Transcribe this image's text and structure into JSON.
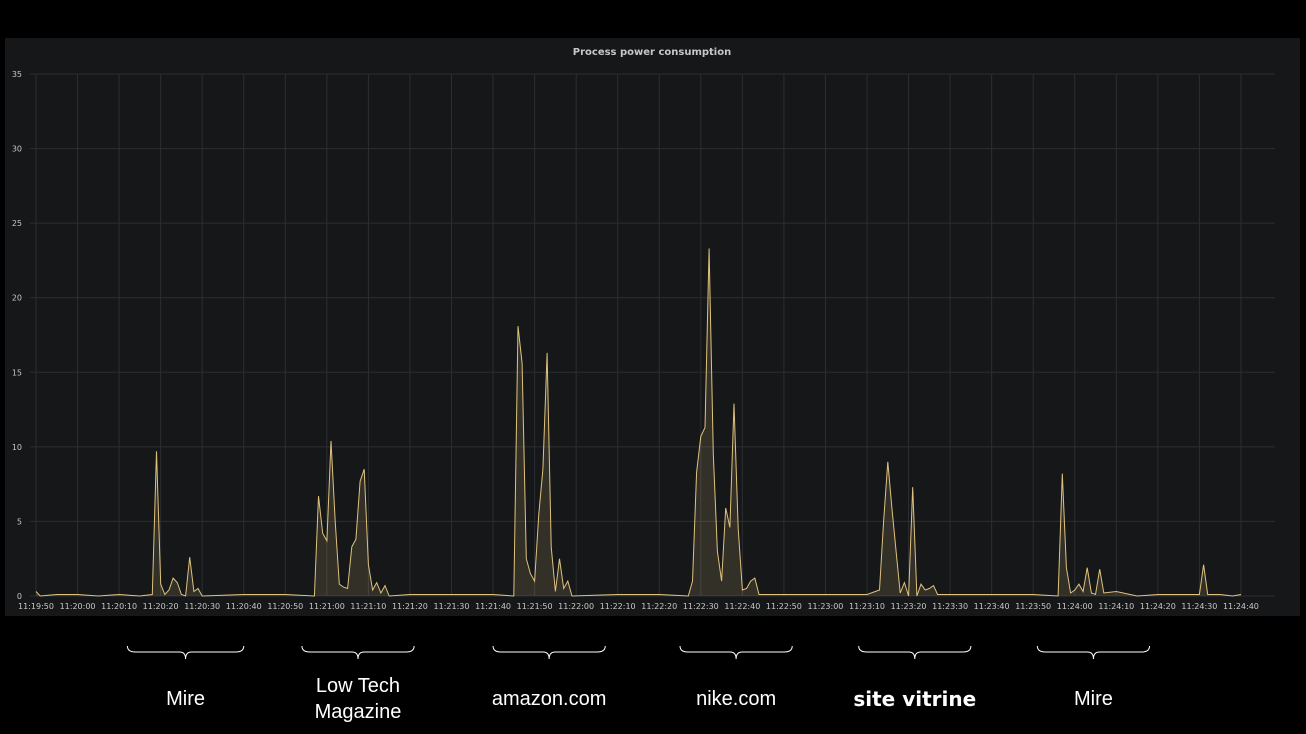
{
  "chart_data": {
    "type": "area",
    "title": "Process power consumption",
    "xlabel": "",
    "ylabel": "",
    "ylim": [
      0,
      35
    ],
    "y_ticks": [
      0,
      5,
      10,
      15,
      20,
      25,
      30,
      35
    ],
    "x_range_seconds_labels": [
      "11:19:50",
      "11:24:40"
    ],
    "x_tick_labels": [
      "11:19:50",
      "11:20:00",
      "11:20:10",
      "11:20:20",
      "11:20:30",
      "11:20:40",
      "11:20:50",
      "11:21:00",
      "11:21:10",
      "11:21:20",
      "11:21:30",
      "11:21:40",
      "11:21:50",
      "11:22:00",
      "11:22:10",
      "11:22:20",
      "11:22:30",
      "11:22:40",
      "11:22:50",
      "11:23:00",
      "11:23:10",
      "11:23:20",
      "11:23:30",
      "11:23:40",
      "11:23:50",
      "11:24:00",
      "11:24:10",
      "11:24:20",
      "11:24:30",
      "11:24:40"
    ],
    "grid": true,
    "series": [
      {
        "color": "#e0c27e",
        "points": [
          [
            "11:19:50",
            0.3
          ],
          [
            "11:19:51",
            0
          ],
          [
            "11:19:55",
            0.1
          ],
          [
            "11:20:00",
            0.1
          ],
          [
            "11:20:05",
            0
          ],
          [
            "11:20:10",
            0.1
          ],
          [
            "11:20:15",
            0
          ],
          [
            "11:20:18",
            0.1
          ],
          [
            "11:20:19",
            9.7
          ],
          [
            "11:20:20",
            0.8
          ],
          [
            "11:20:21",
            0.1
          ],
          [
            "11:20:22",
            0.4
          ],
          [
            "11:20:23",
            1.2
          ],
          [
            "11:20:24",
            0.9
          ],
          [
            "11:20:25",
            0.1
          ],
          [
            "11:20:26",
            0
          ],
          [
            "11:20:27",
            2.6
          ],
          [
            "11:20:28",
            0.3
          ],
          [
            "11:20:29",
            0.5
          ],
          [
            "11:20:30",
            0
          ],
          [
            "11:20:40",
            0.1
          ],
          [
            "11:20:50",
            0.1
          ],
          [
            "11:20:57",
            0
          ],
          [
            "11:20:58",
            6.7
          ],
          [
            "11:20:59",
            4.2
          ],
          [
            "11:21:00",
            3.7
          ],
          [
            "11:21:01",
            10.4
          ],
          [
            "11:21:02",
            5.0
          ],
          [
            "11:21:03",
            0.8
          ],
          [
            "11:21:04",
            0.6
          ],
          [
            "11:21:05",
            0.5
          ],
          [
            "11:21:06",
            3.3
          ],
          [
            "11:21:07",
            3.8
          ],
          [
            "11:21:08",
            7.7
          ],
          [
            "11:21:09",
            8.5
          ],
          [
            "11:21:10",
            2.1
          ],
          [
            "11:21:11",
            0.4
          ],
          [
            "11:21:12",
            0.9
          ],
          [
            "11:21:13",
            0.2
          ],
          [
            "11:21:14",
            0.7
          ],
          [
            "11:21:15",
            0
          ],
          [
            "11:21:20",
            0.1
          ],
          [
            "11:21:30",
            0.1
          ],
          [
            "11:21:40",
            0.1
          ],
          [
            "11:21:45",
            0
          ],
          [
            "11:21:46",
            18.1
          ],
          [
            "11:21:47",
            15.6
          ],
          [
            "11:21:48",
            2.5
          ],
          [
            "11:21:49",
            1.5
          ],
          [
            "11:21:50",
            1.0
          ],
          [
            "11:21:51",
            5.5
          ],
          [
            "11:21:52",
            8.5
          ],
          [
            "11:21:53",
            16.3
          ],
          [
            "11:21:54",
            3.3
          ],
          [
            "11:21:55",
            0.3
          ],
          [
            "11:21:56",
            2.5
          ],
          [
            "11:21:57",
            0.5
          ],
          [
            "11:21:58",
            1.0
          ],
          [
            "11:21:59",
            0
          ],
          [
            "11:22:10",
            0.1
          ],
          [
            "11:22:20",
            0.1
          ],
          [
            "11:22:27",
            0
          ],
          [
            "11:22:28",
            1.0
          ],
          [
            "11:22:29",
            8.3
          ],
          [
            "11:22:30",
            10.7
          ],
          [
            "11:22:31",
            11.3
          ],
          [
            "11:22:32",
            23.3
          ],
          [
            "11:22:33",
            9.5
          ],
          [
            "11:22:34",
            3.0
          ],
          [
            "11:22:35",
            1.0
          ],
          [
            "11:22:36",
            5.9
          ],
          [
            "11:22:37",
            4.6
          ],
          [
            "11:22:38",
            12.9
          ],
          [
            "11:22:39",
            4.5
          ],
          [
            "11:22:40",
            0.4
          ],
          [
            "11:22:41",
            0.5
          ],
          [
            "11:22:42",
            1.0
          ],
          [
            "11:22:43",
            1.2
          ],
          [
            "11:22:44",
            0.1
          ],
          [
            "11:22:50",
            0.1
          ],
          [
            "11:23:00",
            0.1
          ],
          [
            "11:23:10",
            0.1
          ],
          [
            "11:23:13",
            0.4
          ],
          [
            "11:23:14",
            5.0
          ],
          [
            "11:23:15",
            9.0
          ],
          [
            "11:23:16",
            5.9
          ],
          [
            "11:23:17",
            3.0
          ],
          [
            "11:23:18",
            0.2
          ],
          [
            "11:23:19",
            0.9
          ],
          [
            "11:23:20",
            0
          ],
          [
            "11:23:21",
            7.3
          ],
          [
            "11:23:22",
            0
          ],
          [
            "11:23:23",
            0.8
          ],
          [
            "11:23:24",
            0.4
          ],
          [
            "11:23:25",
            0.5
          ],
          [
            "11:23:26",
            0.7
          ],
          [
            "11:23:27",
            0.1
          ],
          [
            "11:23:30",
            0.1
          ],
          [
            "11:23:40",
            0.1
          ],
          [
            "11:23:50",
            0.1
          ],
          [
            "11:23:56",
            0
          ],
          [
            "11:23:57",
            8.2
          ],
          [
            "11:23:58",
            1.9
          ],
          [
            "11:23:59",
            0.2
          ],
          [
            "11:24:00",
            0.4
          ],
          [
            "11:24:01",
            0.8
          ],
          [
            "11:24:02",
            0.3
          ],
          [
            "11:24:03",
            1.9
          ],
          [
            "11:24:04",
            0.2
          ],
          [
            "11:24:05",
            0.1
          ],
          [
            "11:24:06",
            1.8
          ],
          [
            "11:24:07",
            0.2
          ],
          [
            "11:24:10",
            0.3
          ],
          [
            "11:24:15",
            0
          ],
          [
            "11:24:20",
            0.1
          ],
          [
            "11:24:25",
            0.1
          ],
          [
            "11:24:30",
            0.1
          ],
          [
            "11:24:31",
            2.1
          ],
          [
            "11:24:32",
            0.1
          ],
          [
            "11:24:35",
            0.1
          ],
          [
            "11:24:38",
            0
          ],
          [
            "11:24:40",
            0.1
          ]
        ]
      }
    ]
  },
  "annotations": [
    {
      "label": "Mire",
      "from": "11:20:12",
      "to": "11:20:40"
    },
    {
      "label": "Low Tech\nMagazine",
      "from": "11:20:54",
      "to": "11:21:21"
    },
    {
      "label": "amazon.com",
      "from": "11:21:40",
      "to": "11:22:07"
    },
    {
      "label": "nike.com",
      "from": "11:22:25",
      "to": "11:22:52"
    },
    {
      "label": "site vitrine",
      "from": "11:23:08",
      "to": "11:23:35",
      "bold": true
    },
    {
      "label": "Mire",
      "from": "11:23:51",
      "to": "11:24:18"
    }
  ]
}
